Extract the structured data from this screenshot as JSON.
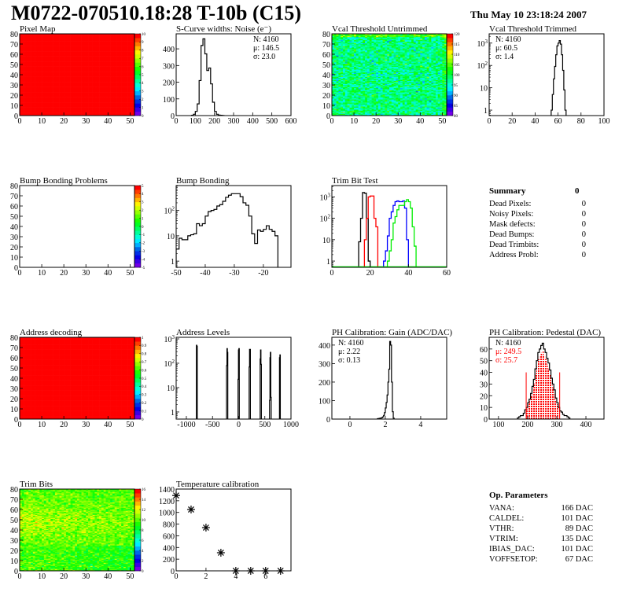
{
  "header": {
    "title": "M0722-070510.18:28 T-10b (C15)",
    "date": "Thu May 10 23:18:24 2007"
  },
  "chart_data": [
    {
      "id": "pixel-map",
      "type": "heatmap",
      "title": "Pixel Map",
      "xlim": [
        0,
        52
      ],
      "ylim": [
        0,
        80
      ],
      "xticks": [
        0,
        10,
        20,
        30,
        40,
        50
      ],
      "yticks": [
        0,
        10,
        20,
        30,
        40,
        50,
        60,
        70,
        80
      ],
      "zlim": [
        0,
        10
      ],
      "zticks": [
        0,
        1,
        2,
        3,
        4,
        5,
        6,
        7,
        8,
        9,
        10
      ],
      "pattern": "uniform",
      "value": 10
    },
    {
      "id": "s-curve",
      "type": "bar",
      "title": "S-Curve widths: Noise (e⁻)",
      "xlim": [
        0,
        600
      ],
      "ylim": [
        0,
        490
      ],
      "yscale": "linear",
      "xticks": [
        0,
        100,
        200,
        300,
        400,
        500,
        600
      ],
      "yticks": [
        0,
        100,
        200,
        300,
        400
      ],
      "series": [
        {
          "color": "#000000",
          "x0": 80,
          "bin_width": 10,
          "values": [
            2,
            8,
            25,
            70,
            210,
            420,
            460,
            370,
            270,
            285,
            190,
            80,
            25,
            8,
            3,
            2,
            1
          ]
        }
      ],
      "stats_position": "top-right",
      "stats": [
        {
          "label": "N",
          "value": "4160"
        },
        {
          "label": "μ",
          "value": "146.5"
        },
        {
          "label": "σ",
          "value": "23.0"
        }
      ]
    },
    {
      "id": "vcal-untrimmed",
      "type": "heatmap",
      "title": "Vcal Threshold Untrimmed",
      "xlim": [
        0,
        52
      ],
      "ylim": [
        0,
        80
      ],
      "xticks": [
        0,
        10,
        20,
        30,
        40,
        50
      ],
      "yticks": [
        0,
        10,
        20,
        30,
        40,
        50,
        60,
        70,
        80
      ],
      "zlim": [
        80,
        120
      ],
      "zticks": [
        80,
        85,
        90,
        95,
        100,
        105,
        110,
        115,
        120
      ],
      "pattern": "noise",
      "typical_value": 98
    },
    {
      "id": "vcal-trimmed",
      "type": "bar",
      "title": "Vcal Threshold Trimmed",
      "xlim": [
        0,
        100
      ],
      "ylim": [
        0.57,
        2600
      ],
      "yscale": "log",
      "xticks": [
        0,
        20,
        40,
        60,
        80,
        100
      ],
      "yticks": [
        1,
        10,
        100,
        1000
      ],
      "series": [
        {
          "color": "#000000",
          "x0": 54,
          "bin_width": 1,
          "values": [
            1,
            5,
            25,
            90,
            300,
            750,
            1000,
            1300,
            900,
            300,
            60,
            8,
            1
          ]
        }
      ],
      "stats_position": "top-left",
      "stats": [
        {
          "label": "N",
          "value": "4160"
        },
        {
          "label": "μ",
          "value": "60.5"
        },
        {
          "label": "σ",
          "value": " 1.4"
        }
      ]
    },
    {
      "id": "bump-bonding-problems",
      "type": "heatmap",
      "title": "Bump Bonding Problems",
      "xlim": [
        0,
        52
      ],
      "ylim": [
        0,
        80
      ],
      "xticks": [
        0,
        10,
        20,
        30,
        40,
        50
      ],
      "yticks": [
        0,
        10,
        20,
        30,
        40,
        50,
        60,
        70,
        80
      ],
      "zlim": [
        -5,
        5
      ],
      "zticks": [
        -5,
        -4,
        -3,
        -2,
        -1,
        0,
        1,
        2,
        3,
        4,
        5
      ],
      "pattern": "empty"
    },
    {
      "id": "bump-bonding",
      "type": "bar",
      "title": "Bump Bonding",
      "xlim": [
        -50,
        -10.5
      ],
      "ylim": [
        0.57,
        960
      ],
      "yscale": "log",
      "xticks": [
        -50,
        -40,
        -30,
        -20
      ],
      "yticks": [
        1,
        10,
        100
      ],
      "series": [
        {
          "color": "#000000",
          "x0": -50,
          "bin_width": 1,
          "values": [
            3,
            8,
            7,
            7,
            10,
            11,
            12,
            30,
            25,
            30,
            60,
            90,
            100,
            110,
            150,
            170,
            230,
            330,
            400,
            460,
            460,
            460,
            350,
            200,
            160,
            60,
            12,
            5,
            17,
            15,
            18,
            25,
            18,
            15,
            10
          ]
        }
      ]
    },
    {
      "id": "trim-bit-test",
      "type": "bar",
      "title": "Trim Bit Test",
      "xlim": [
        0,
        60
      ],
      "ylim": [
        0.51,
        3400
      ],
      "yscale": "log",
      "xticks": [
        0,
        20,
        40,
        60
      ],
      "yticks": [
        1,
        10,
        100,
        1000
      ],
      "series": [
        {
          "color": "#000000",
          "x0": 14,
          "bin_width": 1,
          "values": [
            8,
            100,
            1600,
            1500,
            100,
            1
          ]
        },
        {
          "color": "#ff0000",
          "x0": 17,
          "bin_width": 1,
          "values": [
            10,
            100,
            1000,
            1100,
            1100,
            100,
            40
          ]
        },
        {
          "color": "#0000ff",
          "x0": 27,
          "bin_width": 1,
          "values": [
            1,
            3,
            15,
            100,
            200,
            400,
            600,
            650,
            600,
            600,
            650,
            300,
            10,
            0
          ]
        },
        {
          "color": "#00ee00",
          "x0": 29,
          "bin_width": 1,
          "values": [
            1,
            3,
            10,
            60,
            120,
            250,
            400,
            400,
            400,
            600,
            750,
            600,
            300,
            40,
            5,
            0
          ]
        }
      ]
    },
    {
      "id": "address-decoding",
      "type": "heatmap",
      "title": "Address decoding",
      "xlim": [
        0,
        52
      ],
      "ylim": [
        0,
        80
      ],
      "xticks": [
        0,
        10,
        20,
        30,
        40,
        50
      ],
      "yticks": [
        0,
        10,
        20,
        30,
        40,
        50,
        60,
        70,
        80
      ],
      "zlim": [
        0,
        1
      ],
      "zticks": [
        0,
        0.1,
        0.2,
        0.3,
        0.4,
        0.5,
        0.6,
        0.7,
        0.8,
        0.9,
        1
      ],
      "pattern": "uniform",
      "value": 1
    },
    {
      "id": "address-levels",
      "type": "bar",
      "title": "Address Levels",
      "xlim": [
        -1195,
        1000
      ],
      "ylim": [
        0.51,
        1160
      ],
      "yscale": "log",
      "xticks": [
        -1000,
        -500,
        0,
        500,
        1000
      ],
      "yticks": [
        1,
        10,
        100,
        1000
      ],
      "series": [
        {
          "color": "#000000",
          "x0": -808,
          "bin_width": 8,
          "values": [
            550,
            500
          ]
        },
        {
          "color": "#000000",
          "x0": -232,
          "bin_width": 8,
          "values": [
            80,
            400,
            280
          ]
        },
        {
          "color": "#000000",
          "x0": -12,
          "bin_width": 8,
          "values": [
            22,
            350,
            400
          ]
        },
        {
          "color": "#000000",
          "x0": 200,
          "bin_width": 8,
          "values": [
            70,
            370,
            370
          ]
        },
        {
          "color": "#000000",
          "x0": 410,
          "bin_width": 8,
          "values": [
            150,
            350,
            90
          ]
        },
        {
          "color": "#000000",
          "x0": 590,
          "bin_width": 8,
          "values": [
            3,
            170,
            280,
            4
          ]
        },
        {
          "color": "#000000",
          "x0": 780,
          "bin_width": 8,
          "values": [
            170,
            220
          ]
        }
      ]
    },
    {
      "id": "ph-gain",
      "type": "bar",
      "title": "PH Calibration: Gain (ADC/DAC)",
      "xlim": [
        -1.02,
        5.47
      ],
      "ylim": [
        0,
        442
      ],
      "yscale": "linear",
      "xticks": [
        0,
        2,
        4
      ],
      "yticks": [
        0,
        100,
        200,
        300,
        400
      ],
      "series": [
        {
          "color": "#000000",
          "x0": 1.55,
          "bin_width": 0.05,
          "values": [
            2,
            3,
            4,
            5,
            6,
            8,
            12,
            20,
            35,
            60,
            90,
            130,
            200,
            270,
            420,
            400,
            200,
            40,
            5
          ]
        }
      ],
      "stats_position": "top-left",
      "stats": [
        {
          "label": "N",
          "value": "4160"
        },
        {
          "label": "μ",
          "value": "2.22"
        },
        {
          "label": "σ",
          "value": "0.13"
        }
      ]
    },
    {
      "id": "ph-pedestal",
      "type": "bar",
      "title": "PH Calibration: Pedestal (DAC)",
      "xlim": [
        68,
        462
      ],
      "ylim": [
        0,
        70
      ],
      "yscale": "linear",
      "xticks": [
        100,
        200,
        300,
        400
      ],
      "yticks": [
        0,
        10,
        20,
        30,
        40,
        50,
        60
      ],
      "series": [
        {
          "color": "#000000",
          "x0": 165,
          "bin_width": 5,
          "values": [
            1,
            2,
            3,
            3,
            5,
            8,
            10,
            14,
            17,
            22,
            28,
            34,
            43,
            50,
            57,
            60,
            63,
            65,
            60,
            57,
            52,
            48,
            42,
            35,
            30,
            25,
            18,
            14,
            10,
            7,
            6,
            4,
            3,
            3,
            2,
            1
          ]
        }
      ],
      "fit_range": [
        195,
        310
      ],
      "fit_color": "#ff0000",
      "cut_lines": [
        {
          "x": 195,
          "y": 40
        },
        {
          "x": 310,
          "y": 40
        }
      ],
      "stats_position": "top-left",
      "stats": [
        {
          "label": "N",
          "value": "4160",
          "color": "#000000"
        },
        {
          "label": "μ",
          "value": "249.5",
          "color": "#ff0000"
        },
        {
          "label": "σ",
          "value": "25.7",
          "color": "#ff0000"
        }
      ]
    },
    {
      "id": "trim-bits",
      "type": "heatmap",
      "title": "Trim Bits",
      "xlim": [
        0,
        52
      ],
      "ylim": [
        0,
        80
      ],
      "xticks": [
        0,
        10,
        20,
        30,
        40,
        50
      ],
      "yticks": [
        0,
        10,
        20,
        30,
        40,
        50,
        60,
        70,
        80
      ],
      "zlim": [
        0,
        16
      ],
      "zticks": [
        0,
        2,
        4,
        6,
        8,
        10,
        12,
        14,
        16
      ],
      "pattern": "noise",
      "typical_value": 10
    },
    {
      "id": "temperature-calibration",
      "type": "scatter",
      "title": "Temperature calibration",
      "xlim": [
        0,
        7.7
      ],
      "ylim": [
        0,
        1400
      ],
      "yscale": "linear",
      "xticks": [
        0,
        2,
        4,
        6
      ],
      "yticks": [
        0,
        200,
        400,
        600,
        800,
        1000,
        1200,
        1400
      ],
      "x": [
        0,
        1,
        2,
        3,
        4,
        5,
        6,
        7
      ],
      "y": [
        1290,
        1050,
        740,
        310,
        0,
        0,
        0,
        0
      ],
      "marker": "star"
    }
  ],
  "summary": {
    "title": "Summary",
    "total": "0",
    "rows": [
      {
        "label": "Dead Pixels:",
        "value": "0"
      },
      {
        "label": "Noisy Pixels:",
        "value": "0"
      },
      {
        "label": "Mask defects:",
        "value": "0"
      },
      {
        "label": "Dead Bumps:",
        "value": "0"
      },
      {
        "label": "Dead Trimbits:",
        "value": "0"
      },
      {
        "label": "Address Probl:",
        "value": "0"
      }
    ]
  },
  "op_parameters": {
    "title": "Op. Parameters",
    "rows": [
      {
        "label": "VANA:",
        "value": "166 DAC"
      },
      {
        "label": "CALDEL:",
        "value": "101 DAC"
      },
      {
        "label": "VTHR:",
        "value": "89 DAC"
      },
      {
        "label": "VTRIM:",
        "value": "135 DAC"
      },
      {
        "label": "IBIAS_DAC:",
        "value": "101 DAC"
      },
      {
        "label": "VOFFSETOP:",
        "value": "67 DAC"
      }
    ]
  }
}
